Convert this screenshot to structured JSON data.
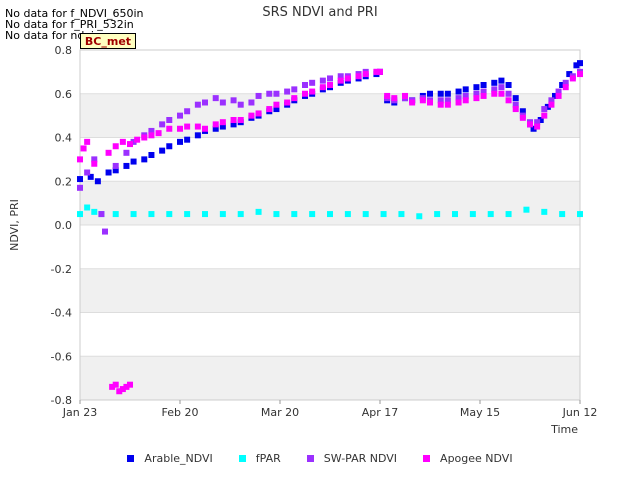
{
  "notes": [
    "No data for f_NDVI_650in",
    "No data for f_PRI_532in",
    "No data for ndvi"
  ],
  "badge": "BC_met",
  "chart_data": {
    "type": "scatter",
    "title": "SRS NDVI and PRI",
    "xlabel": "Time",
    "ylabel": "NDVI, PRI",
    "ylim": [
      -0.8,
      0.8
    ],
    "xlim_days": [
      0,
      140
    ],
    "y_ticks": [
      "0.8",
      "0.6",
      "0.4",
      "0.2",
      "0.0",
      "-0.2",
      "-0.4",
      "-0.6",
      "-0.8"
    ],
    "x_ticks": [
      {
        "label": "Jan 23",
        "day": 0
      },
      {
        "label": "Feb 20",
        "day": 28
      },
      {
        "label": "Mar 20",
        "day": 56
      },
      {
        "label": "Apr 17",
        "day": 84
      },
      {
        "label": "May 15",
        "day": 112
      },
      {
        "label": "Jun 12",
        "day": 140
      }
    ],
    "grid": "horizontal bands",
    "legend_position": "bottom",
    "series": [
      {
        "name": "Arable_NDVI",
        "color": "#0000ee",
        "points": [
          [
            0,
            0.21
          ],
          [
            3,
            0.22
          ],
          [
            5,
            0.2
          ],
          [
            8,
            0.24
          ],
          [
            10,
            0.25
          ],
          [
            13,
            0.27
          ],
          [
            15,
            0.29
          ],
          [
            18,
            0.3
          ],
          [
            20,
            0.32
          ],
          [
            23,
            0.34
          ],
          [
            25,
            0.36
          ],
          [
            28,
            0.38
          ],
          [
            30,
            0.39
          ],
          [
            33,
            0.41
          ],
          [
            35,
            0.43
          ],
          [
            38,
            0.44
          ],
          [
            40,
            0.45
          ],
          [
            43,
            0.46
          ],
          [
            45,
            0.47
          ],
          [
            48,
            0.49
          ],
          [
            50,
            0.5
          ],
          [
            53,
            0.52
          ],
          [
            55,
            0.53
          ],
          [
            58,
            0.55
          ],
          [
            60,
            0.57
          ],
          [
            63,
            0.59
          ],
          [
            65,
            0.6
          ],
          [
            68,
            0.62
          ],
          [
            70,
            0.63
          ],
          [
            73,
            0.65
          ],
          [
            75,
            0.66
          ],
          [
            78,
            0.67
          ],
          [
            80,
            0.68
          ],
          [
            83,
            0.69
          ],
          [
            84,
            0.7
          ],
          [
            86,
            0.57
          ],
          [
            88,
            0.56
          ],
          [
            91,
            0.58
          ],
          [
            93,
            0.57
          ],
          [
            96,
            0.59
          ],
          [
            98,
            0.6
          ],
          [
            101,
            0.6
          ],
          [
            103,
            0.6
          ],
          [
            106,
            0.61
          ],
          [
            108,
            0.62
          ],
          [
            111,
            0.63
          ],
          [
            113,
            0.64
          ],
          [
            116,
            0.65
          ],
          [
            118,
            0.66
          ],
          [
            120,
            0.64
          ],
          [
            122,
            0.58
          ],
          [
            124,
            0.52
          ],
          [
            126,
            0.46
          ],
          [
            127,
            0.44
          ],
          [
            129,
            0.48
          ],
          [
            131,
            0.54
          ],
          [
            133,
            0.59
          ],
          [
            135,
            0.64
          ],
          [
            137,
            0.69
          ],
          [
            139,
            0.73
          ],
          [
            140,
            0.74
          ]
        ]
      },
      {
        "name": "fPAR",
        "color": "#00ffff",
        "points": [
          [
            0,
            0.05
          ],
          [
            2,
            0.08
          ],
          [
            4,
            0.06
          ],
          [
            6,
            0.05
          ],
          [
            10,
            0.05
          ],
          [
            15,
            0.05
          ],
          [
            20,
            0.05
          ],
          [
            25,
            0.05
          ],
          [
            30,
            0.05
          ],
          [
            35,
            0.05
          ],
          [
            40,
            0.05
          ],
          [
            45,
            0.05
          ],
          [
            50,
            0.06
          ],
          [
            55,
            0.05
          ],
          [
            60,
            0.05
          ],
          [
            65,
            0.05
          ],
          [
            70,
            0.05
          ],
          [
            75,
            0.05
          ],
          [
            80,
            0.05
          ],
          [
            85,
            0.05
          ],
          [
            90,
            0.05
          ],
          [
            95,
            0.04
          ],
          [
            100,
            0.05
          ],
          [
            105,
            0.05
          ],
          [
            110,
            0.05
          ],
          [
            115,
            0.05
          ],
          [
            120,
            0.05
          ],
          [
            125,
            0.07
          ],
          [
            130,
            0.06
          ],
          [
            135,
            0.05
          ],
          [
            140,
            0.05
          ]
        ]
      },
      {
        "name": "SW-PAR NDVI",
        "color": "#9b30ff",
        "points": [
          [
            0,
            0.17
          ],
          [
            2,
            0.24
          ],
          [
            4,
            0.3
          ],
          [
            6,
            0.05
          ],
          [
            7,
            -0.03
          ],
          [
            10,
            0.27
          ],
          [
            13,
            0.33
          ],
          [
            15,
            0.38
          ],
          [
            18,
            0.41
          ],
          [
            20,
            0.43
          ],
          [
            23,
            0.46
          ],
          [
            25,
            0.48
          ],
          [
            28,
            0.5
          ],
          [
            30,
            0.52
          ],
          [
            33,
            0.55
          ],
          [
            35,
            0.56
          ],
          [
            38,
            0.58
          ],
          [
            40,
            0.56
          ],
          [
            43,
            0.57
          ],
          [
            45,
            0.55
          ],
          [
            48,
            0.56
          ],
          [
            50,
            0.59
          ],
          [
            53,
            0.6
          ],
          [
            55,
            0.6
          ],
          [
            58,
            0.61
          ],
          [
            60,
            0.62
          ],
          [
            63,
            0.64
          ],
          [
            65,
            0.65
          ],
          [
            68,
            0.66
          ],
          [
            70,
            0.67
          ],
          [
            73,
            0.68
          ],
          [
            75,
            0.68
          ],
          [
            78,
            0.69
          ],
          [
            80,
            0.7
          ],
          [
            83,
            0.7
          ],
          [
            84,
            0.7
          ],
          [
            86,
            0.58
          ],
          [
            88,
            0.57
          ],
          [
            91,
            0.58
          ],
          [
            93,
            0.57
          ],
          [
            96,
            0.58
          ],
          [
            98,
            0.57
          ],
          [
            101,
            0.57
          ],
          [
            103,
            0.57
          ],
          [
            106,
            0.58
          ],
          [
            108,
            0.59
          ],
          [
            111,
            0.6
          ],
          [
            113,
            0.61
          ],
          [
            116,
            0.62
          ],
          [
            118,
            0.63
          ],
          [
            120,
            0.6
          ],
          [
            122,
            0.55
          ],
          [
            124,
            0.5
          ],
          [
            126,
            0.47
          ],
          [
            128,
            0.47
          ],
          [
            130,
            0.53
          ],
          [
            132,
            0.57
          ],
          [
            134,
            0.61
          ],
          [
            136,
            0.65
          ],
          [
            138,
            0.68
          ],
          [
            140,
            0.7
          ]
        ]
      },
      {
        "name": "Apogee NDVI",
        "color": "#ff00ff",
        "points": [
          [
            0,
            0.3
          ],
          [
            1,
            0.35
          ],
          [
            2,
            0.38
          ],
          [
            4,
            0.28
          ],
          [
            8,
            0.33
          ],
          [
            10,
            0.36
          ],
          [
            12,
            0.38
          ],
          [
            14,
            0.37
          ],
          [
            16,
            0.39
          ],
          [
            18,
            0.4
          ],
          [
            20,
            0.41
          ],
          [
            22,
            0.42
          ],
          [
            25,
            0.44
          ],
          [
            28,
            0.44
          ],
          [
            30,
            0.45
          ],
          [
            33,
            0.45
          ],
          [
            35,
            0.44
          ],
          [
            38,
            0.46
          ],
          [
            40,
            0.47
          ],
          [
            43,
            0.48
          ],
          [
            45,
            0.48
          ],
          [
            48,
            0.5
          ],
          [
            50,
            0.51
          ],
          [
            53,
            0.53
          ],
          [
            55,
            0.55
          ],
          [
            58,
            0.56
          ],
          [
            60,
            0.58
          ],
          [
            63,
            0.6
          ],
          [
            65,
            0.61
          ],
          [
            68,
            0.63
          ],
          [
            70,
            0.64
          ],
          [
            73,
            0.66
          ],
          [
            75,
            0.67
          ],
          [
            78,
            0.68
          ],
          [
            80,
            0.69
          ],
          [
            83,
            0.7
          ],
          [
            84,
            0.7
          ],
          [
            86,
            0.59
          ],
          [
            88,
            0.58
          ],
          [
            91,
            0.59
          ],
          [
            93,
            0.56
          ],
          [
            96,
            0.57
          ],
          [
            98,
            0.56
          ],
          [
            101,
            0.55
          ],
          [
            103,
            0.55
          ],
          [
            106,
            0.56
          ],
          [
            108,
            0.57
          ],
          [
            111,
            0.58
          ],
          [
            113,
            0.59
          ],
          [
            116,
            0.6
          ],
          [
            118,
            0.6
          ],
          [
            120,
            0.57
          ],
          [
            122,
            0.53
          ],
          [
            124,
            0.49
          ],
          [
            126,
            0.46
          ],
          [
            128,
            0.45
          ],
          [
            130,
            0.5
          ],
          [
            132,
            0.55
          ],
          [
            134,
            0.59
          ],
          [
            136,
            0.63
          ],
          [
            138,
            0.67
          ],
          [
            140,
            0.69
          ],
          [
            9,
            -0.74
          ],
          [
            10,
            -0.73
          ],
          [
            11,
            -0.76
          ],
          [
            12,
            -0.75
          ],
          [
            13,
            -0.74
          ],
          [
            14,
            -0.73
          ]
        ]
      }
    ]
  }
}
